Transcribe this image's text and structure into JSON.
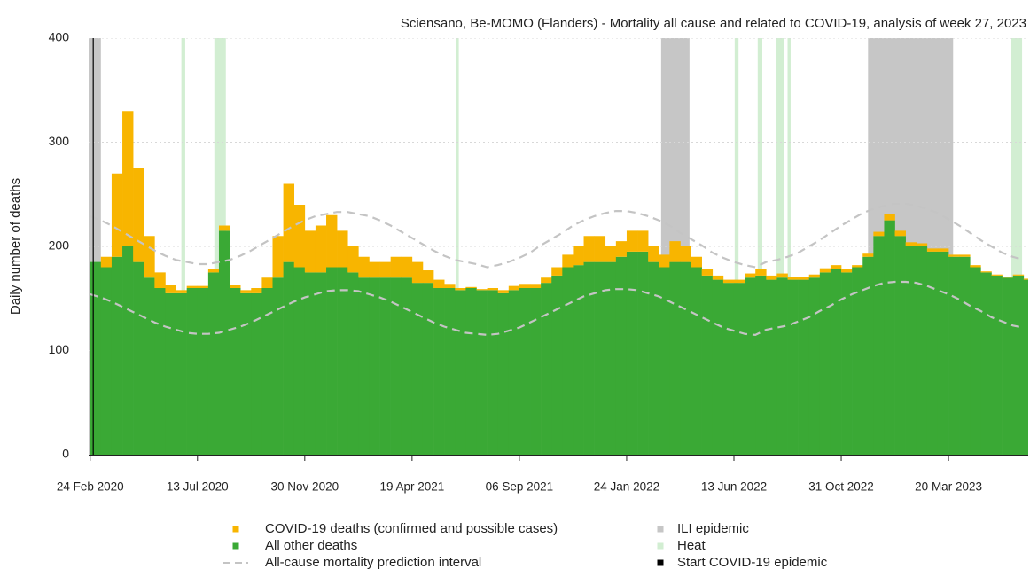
{
  "chart_data": {
    "type": "stacked-bar",
    "title": "Sciensano, Be-MOMO (Flanders) - Mortality all cause and related to COVID-19, analysis of week 27, 2023",
    "y_label": "Daily number of deaths",
    "x": [
      "24 Feb 2020",
      "09 Mar 2020",
      "23 Mar 2020",
      "06 Apr 2020",
      "20 Apr 2020",
      "04 May 2020",
      "18 May 2020",
      "01 Jun 2020",
      "15 Jun 2020",
      "29 Jun 2020",
      "13 Jul 2020",
      "27 Jul 2020",
      "10 Aug 2020",
      "24 Aug 2020",
      "07 Sep 2020",
      "21 Sep 2020",
      "05 Oct 2020",
      "19 Oct 2020",
      "02 Nov 2020",
      "16 Nov 2020",
      "30 Nov 2020",
      "14 Dec 2020",
      "28 Dec 2020",
      "11 Jan 2021",
      "25 Jan 2021",
      "08 Feb 2021",
      "22 Feb 2021",
      "08 Mar 2021",
      "22 Mar 2021",
      "05 Apr 2021",
      "19 Apr 2021",
      "03 May 2021",
      "17 May 2021",
      "31 May 2021",
      "14 Jun 2021",
      "28 Jun 2021",
      "12 Jul 2021",
      "26 Jul 2021",
      "09 Aug 2021",
      "23 Aug 2021",
      "06 Sep 2021",
      "20 Sep 2021",
      "04 Oct 2021",
      "18 Oct 2021",
      "01 Nov 2021",
      "15 Nov 2021",
      "29 Nov 2021",
      "13 Dec 2021",
      "27 Dec 2021",
      "10 Jan 2022",
      "24 Jan 2022",
      "07 Feb 2022",
      "21 Feb 2022",
      "07 Mar 2022",
      "21 Mar 2022",
      "04 Apr 2022",
      "18 Apr 2022",
      "02 May 2022",
      "16 May 2022",
      "30 May 2022",
      "13 Jun 2022",
      "27 Jun 2022",
      "11 Jul 2022",
      "25 Jul 2022",
      "08 Aug 2022",
      "22 Aug 2022",
      "05 Sep 2022",
      "19 Sep 2022",
      "03 Oct 2022",
      "17 Oct 2022",
      "31 Oct 2022",
      "14 Nov 2022",
      "28 Nov 2022",
      "12 Dec 2022",
      "26 Dec 2022",
      "09 Jan 2023",
      "23 Jan 2023",
      "06 Feb 2023",
      "20 Feb 2023",
      "06 Mar 2023",
      "20 Mar 2023",
      "03 Apr 2023",
      "17 Apr 2023",
      "01 May 2023",
      "15 May 2023",
      "29 May 2023",
      "12 Jun 2023",
      "26 Jun 2023"
    ],
    "series": [
      {
        "name": "COVID-19 deaths (confirmed and possible cases)",
        "color": "#f8b500",
        "values": [
          0,
          10,
          80,
          130,
          90,
          40,
          15,
          8,
          3,
          2,
          2,
          3,
          5,
          3,
          3,
          5,
          10,
          40,
          75,
          60,
          40,
          45,
          50,
          35,
          25,
          20,
          15,
          15,
          20,
          20,
          20,
          12,
          8,
          4,
          2,
          1,
          1,
          2,
          3,
          4,
          4,
          4,
          5,
          8,
          12,
          18,
          25,
          25,
          15,
          15,
          20,
          20,
          15,
          12,
          20,
          15,
          10,
          6,
          4,
          3,
          3,
          4,
          6,
          4,
          4,
          3,
          3,
          3,
          4,
          4,
          3,
          2,
          3,
          4,
          6,
          5,
          4,
          3,
          3,
          3,
          2,
          2,
          2,
          1,
          1,
          1,
          1,
          1
        ]
      },
      {
        "name": "All other deaths",
        "color": "#3aa935",
        "values": [
          185,
          180,
          190,
          200,
          185,
          170,
          160,
          155,
          155,
          160,
          160,
          175,
          215,
          160,
          155,
          155,
          160,
          170,
          185,
          180,
          175,
          175,
          180,
          180,
          175,
          170,
          170,
          170,
          170,
          170,
          165,
          165,
          160,
          160,
          158,
          160,
          158,
          158,
          155,
          158,
          160,
          160,
          165,
          172,
          180,
          182,
          185,
          185,
          185,
          190,
          195,
          195,
          185,
          180,
          185,
          185,
          180,
          172,
          168,
          165,
          165,
          170,
          172,
          168,
          170,
          168,
          168,
          170,
          175,
          178,
          175,
          180,
          190,
          210,
          225,
          210,
          200,
          200,
          195,
          195,
          190,
          190,
          180,
          175,
          172,
          170,
          172,
          168
        ]
      }
    ],
    "prediction_interval": {
      "name": "All-cause mortality prediction interval",
      "color": "#c4c4c4",
      "lower": [
        154,
        151,
        147,
        142,
        137,
        132,
        127,
        123,
        120,
        117,
        116,
        116,
        117,
        120,
        123,
        127,
        132,
        137,
        142,
        147,
        151,
        154,
        157,
        158,
        158,
        157,
        154,
        151,
        147,
        142,
        137,
        132,
        127,
        123,
        120,
        117,
        116,
        115,
        116,
        119,
        122,
        127,
        132,
        137,
        142,
        147,
        152,
        155,
        158,
        159,
        159,
        158,
        155,
        152,
        147,
        142,
        137,
        132,
        127,
        122,
        119,
        116,
        115,
        120,
        122,
        124,
        128,
        132,
        138,
        143,
        149,
        154,
        158,
        162,
        165,
        166,
        166,
        165,
        162,
        158,
        154,
        149,
        143,
        138,
        132,
        128,
        124,
        122
      ],
      "upper": [
        229,
        225,
        220,
        214,
        208,
        202,
        196,
        191,
        187,
        185,
        183,
        183,
        185,
        187,
        191,
        196,
        202,
        208,
        214,
        220,
        225,
        229,
        231,
        233,
        233,
        231,
        229,
        225,
        220,
        214,
        208,
        202,
        196,
        191,
        187,
        185,
        183,
        180,
        182,
        185,
        189,
        194,
        201,
        207,
        213,
        220,
        225,
        229,
        232,
        234,
        234,
        232,
        229,
        225,
        220,
        213,
        207,
        201,
        194,
        189,
        185,
        182,
        180,
        185,
        187,
        190,
        194,
        200,
        206,
        213,
        220,
        226,
        232,
        236,
        239,
        241,
        241,
        239,
        236,
        232,
        226,
        220,
        213,
        206,
        200,
        194,
        190,
        187
      ]
    },
    "shaded": [
      {
        "name": "ILI epidemic",
        "color": "#c6c6c6",
        "periods": [
          [
            "22 Feb 2020",
            "09 Mar 2020"
          ],
          [
            "10 Mar 2022",
            "16 Apr 2022"
          ],
          [
            "05 Dec 2022",
            "26 Mar 2023"
          ]
        ]
      },
      {
        "name": "Heat",
        "color": "#d2eed2",
        "periods": [
          [
            "22 Jun 2020",
            "27 Jun 2020"
          ],
          [
            "04 Aug 2020",
            "19 Aug 2020"
          ],
          [
            "15 Jun 2021",
            "19 Jun 2021"
          ],
          [
            "14 Jun 2022",
            "19 Jun 2022"
          ],
          [
            "14 Jul 2022",
            "20 Jul 2022"
          ],
          [
            "07 Aug 2022",
            "17 Aug 2022"
          ],
          [
            "22 Aug 2022",
            "26 Aug 2022"
          ],
          [
            "10 Jun 2023",
            "24 Jun 2023"
          ]
        ]
      }
    ],
    "marker": {
      "name": "Start COVID-19 epidemic",
      "color": "#000000",
      "x": "28 Feb 2020"
    },
    "xlim": [
      "22 Feb 2020",
      "02 Jul 2023"
    ],
    "xticks": [
      "24 Feb 2020",
      "13 Jul 2020",
      "30 Nov 2020",
      "19 Apr 2021",
      "06 Sep 2021",
      "24 Jan 2022",
      "13 Jun 2022",
      "31 Oct 2022",
      "20 Mar 2023"
    ],
    "ylim": [
      0,
      400
    ],
    "yticks": [
      0,
      100,
      200,
      300,
      400
    ],
    "grid": true
  }
}
